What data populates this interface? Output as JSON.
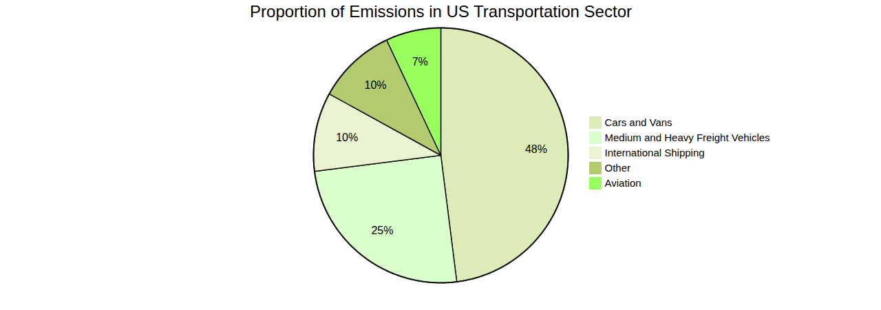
{
  "chart_data": {
    "type": "pie",
    "title": "Proportion of Emissions in US Transportation Sector",
    "categories": [
      "Cars and Vans",
      "Medium and Heavy Freight Vehicles",
      "International Shipping",
      "Other",
      "Aviation"
    ],
    "values": [
      48,
      25,
      10,
      10,
      7
    ],
    "value_labels": [
      "48%",
      "25%",
      "10%",
      "10%",
      "7%"
    ],
    "colors": [
      "#dcebb8",
      "#dbffcc",
      "#eaf4d3",
      "#b2cb6e",
      "#99ff5e"
    ],
    "data_labels": true,
    "legend": "right"
  }
}
